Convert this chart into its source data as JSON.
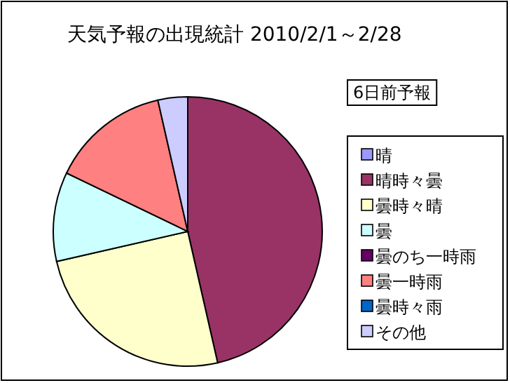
{
  "chart_data": {
    "type": "pie",
    "title": "天気予報の出現統計 2010/2/1～2/28",
    "subtitle": "6日前予報",
    "categories": [
      "晴",
      "晴時々曇",
      "曇時々晴",
      "曇",
      "曇のち一時雨",
      "曇一時雨",
      "曇時々雨",
      "その他"
    ],
    "values": [
      0,
      46.43,
      25,
      10.71,
      0,
      14.29,
      0,
      3.57
    ],
    "colors": [
      "#9999ff",
      "#993366",
      "#ffffcc",
      "#ccffff",
      "#660066",
      "#ff8080",
      "#0066cc",
      "#ccccff"
    ],
    "legend": "right"
  }
}
